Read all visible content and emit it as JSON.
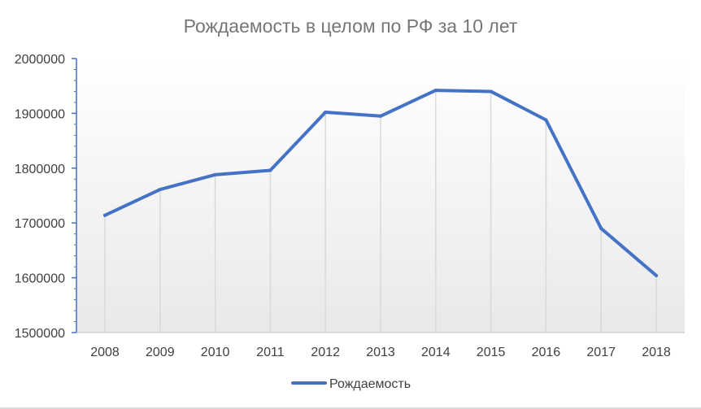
{
  "chart_data": {
    "type": "line",
    "title": "Рождаемость в целом по РФ за 10 лет",
    "xlabel": "",
    "ylabel": "",
    "categories": [
      "2008",
      "2009",
      "2010",
      "2011",
      "2012",
      "2013",
      "2014",
      "2015",
      "2016",
      "2017",
      "2018"
    ],
    "series": [
      {
        "name": "Рождаемость",
        "color": "#4472C4",
        "values": [
          1714000,
          1761000,
          1788000,
          1796000,
          1902000,
          1895000,
          1942000,
          1940000,
          1888000,
          1690000,
          1604000
        ]
      }
    ],
    "ylim": [
      1500000,
      2000000
    ],
    "yticks": [
      "1500000",
      "1600000",
      "1700000",
      "1800000",
      "1900000",
      "2000000"
    ],
    "grid": "vertical drop lines",
    "legend_position": "bottom"
  }
}
